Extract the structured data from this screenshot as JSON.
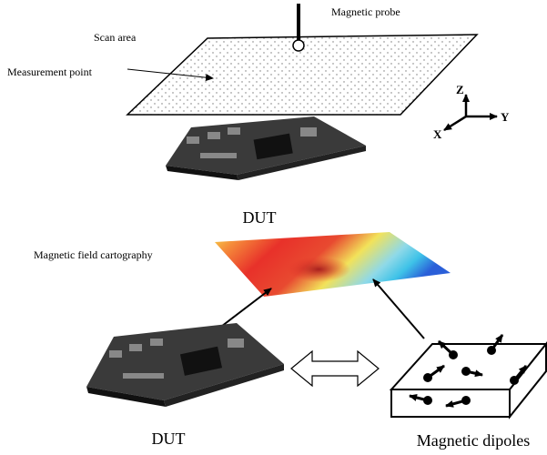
{
  "labels": {
    "probe": "Magnetic probe",
    "scan_area": "Scan area",
    "measurement_point": "Measurement point",
    "axis_z": "Z",
    "axis_y": "Y",
    "axis_x": "X",
    "dut_top": "DUT",
    "cartography": "Magnetic field cartography",
    "dut_bottom": "DUT",
    "dipoles": "Magnetic dipoles"
  }
}
